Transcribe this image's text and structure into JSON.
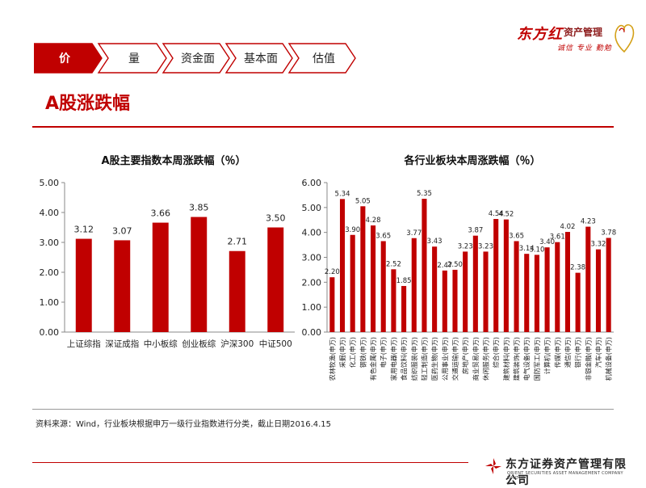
{
  "header": {
    "tabs": [
      {
        "label": "价",
        "active": true
      },
      {
        "label": "量",
        "active": false
      },
      {
        "label": "资金面",
        "active": false
      },
      {
        "label": "基本面",
        "active": false
      },
      {
        "label": "估值",
        "active": false
      }
    ],
    "brand": {
      "name": "东方红",
      "suffix": "资产管理",
      "slogan": "诚信 专业 勤勉",
      "icon": "heart-swirl-logo-icon"
    }
  },
  "page_title": "A股涨跌幅",
  "colors": {
    "accent": "#c00000",
    "tab_inactive": "#ffffff",
    "bar": "#c00000"
  },
  "chart_data": [
    {
      "type": "bar",
      "title": "A股主要指数本周涨跌幅（％）",
      "categories": [
        "上证综指",
        "深证成指",
        "中小板综",
        "创业板综",
        "沪深300",
        "中证500"
      ],
      "values": [
        3.12,
        3.07,
        3.66,
        3.85,
        2.71,
        3.5
      ],
      "value_labels": [
        "3.12",
        "3.07",
        "3.66",
        "3.85",
        "2.71",
        "3.50"
      ],
      "ylim": [
        0,
        5
      ],
      "yticks": [
        "0.00",
        "1.00",
        "2.00",
        "3.00",
        "4.00",
        "5.00"
      ],
      "grid": false,
      "legend": "none"
    },
    {
      "type": "bar",
      "title": "各行业板块本周涨跌幅（％）",
      "categories": [
        "农林牧渔(申万)",
        "采掘(申万)",
        "化工(申万)",
        "钢铁(申万)",
        "有色金属(申万)",
        "电子(申万)",
        "家用电器(申万)",
        "食品饮料(申万)",
        "纺织服装(申万)",
        "轻工制造(申万)",
        "医药生物(申万)",
        "公用事业(申万)",
        "交通运输(申万)",
        "房地产(申万)",
        "商业贸易(申万)",
        "休闲服务(申万)",
        "综合(申万)",
        "建筑材料(申万)",
        "建筑装饰(申万)",
        "电气设备(申万)",
        "国防军工(申万)",
        "计算机(申万)",
        "传媒(申万)",
        "通信(申万)",
        "银行(申万)",
        "非银金融(申万)",
        "汽车(申万)",
        "机械设备(申万)"
      ],
      "values": [
        2.2,
        5.34,
        3.9,
        5.05,
        4.28,
        3.65,
        2.52,
        1.85,
        3.77,
        5.35,
        3.43,
        2.47,
        2.5,
        3.23,
        3.87,
        3.23,
        4.54,
        4.52,
        3.65,
        3.14,
        3.1,
        3.4,
        3.61,
        4.02,
        2.38,
        4.23,
        3.32,
        3.78
      ],
      "value_labels": [
        "2.20",
        "5.34",
        "3.90",
        "5.05",
        "4.28",
        "3.65",
        "2.52",
        "1.85",
        "3.77",
        "5.35",
        "3.43",
        "2.47",
        "2.50",
        "3.23",
        "3.87",
        "3.23",
        "4.54",
        "4.52",
        "3.65",
        "3.14",
        "3.10",
        "3.40",
        "3.61",
        "4.02",
        "2.38",
        "4.23",
        "3.32",
        "3.78"
      ],
      "ylim": [
        0,
        6
      ],
      "yticks": [
        "0.00",
        "1.00",
        "2.00",
        "3.00",
        "4.00",
        "5.00",
        "6.00"
      ],
      "grid": false,
      "legend": "none"
    }
  ],
  "source_note": "资料来源：Wind，行业板块根据申万一级行业指数进行分类，截止日期2016.4.15",
  "footer": {
    "company_cn": "东方证券资产管理有限公司",
    "company_en": "ORIENT SECURITIES ASSET MANAGEMENT COMPANY LIMITED",
    "icon": "orient-securities-logo-icon"
  }
}
